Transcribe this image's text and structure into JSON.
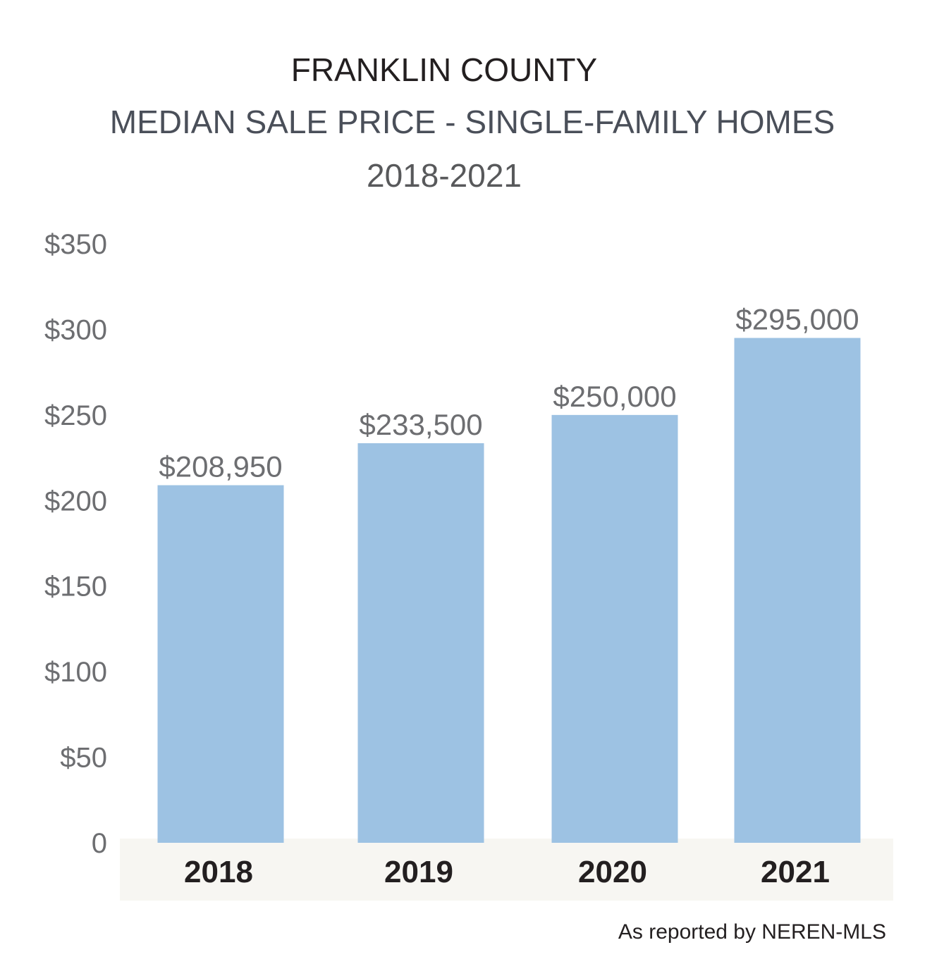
{
  "title": "FRANKLIN COUNTY",
  "subtitle": "MEDIAN SALE PRICE - SINGLE-FAMILY HOMES",
  "period": "2018-2021",
  "source": "As reported by NEREN-MLS",
  "colors": {
    "bar": "#9dc2e3",
    "axis_band": "#f7f6f2"
  },
  "chart_data": {
    "type": "bar",
    "categories": [
      "2018",
      "2019",
      "2020",
      "2021"
    ],
    "values": [
      208950,
      233500,
      250000,
      295000
    ],
    "data_labels": [
      "$208,950",
      "$233,500",
      "$250,000",
      "$295,000"
    ],
    "y_ticks": [
      "0",
      "$50",
      "$100",
      "$150",
      "$200",
      "$250",
      "$300",
      "$350"
    ],
    "ylim": [
      0,
      350000
    ],
    "grid": false,
    "legend": "none"
  }
}
